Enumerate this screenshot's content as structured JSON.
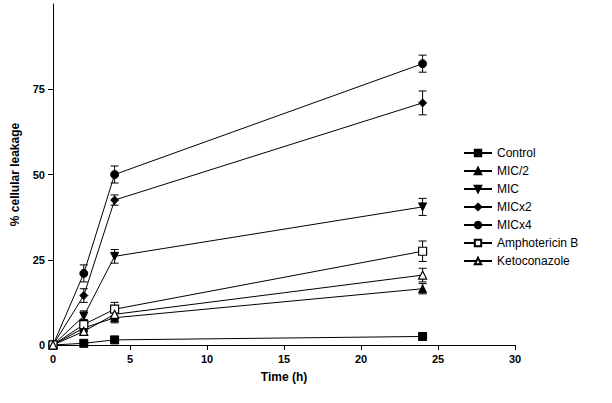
{
  "chart_data": {
    "type": "line",
    "x_label": "Time (h)",
    "y_label": "% cellular leakage",
    "xlim": [
      0,
      30
    ],
    "xticks": [
      0,
      5,
      10,
      15,
      20,
      25,
      30
    ],
    "ylim": [
      0,
      100
    ],
    "yticks": [
      0,
      25,
      50,
      75
    ],
    "grid": false,
    "legend": "right",
    "series": [
      {
        "name": "Control",
        "color": "#000000",
        "marker": "square",
        "x": [
          0,
          2,
          4,
          24
        ],
        "values": [
          0,
          0.5,
          1.5,
          2.5
        ],
        "errors": [
          0,
          0.3,
          0.4,
          0.5
        ]
      },
      {
        "name": "MIC/2",
        "color": "#000000",
        "marker": "triangle",
        "x": [
          0,
          2,
          4,
          24
        ],
        "values": [
          0,
          5,
          8,
          16.5
        ],
        "errors": [
          0,
          1,
          1.5,
          1.5
        ]
      },
      {
        "name": "MIC",
        "color": "#000000",
        "marker": "triangle-down",
        "x": [
          0,
          2,
          4,
          24
        ],
        "values": [
          0,
          8.5,
          26,
          40.5
        ],
        "errors": [
          0,
          1.5,
          2,
          2.5
        ]
      },
      {
        "name": "MICx2",
        "color": "#000000",
        "marker": "diamond",
        "x": [
          0,
          2,
          4,
          24
        ],
        "values": [
          0,
          14.5,
          42.5,
          71
        ],
        "errors": [
          0,
          2,
          1.5,
          3.5
        ]
      },
      {
        "name": "MICx4",
        "color": "#000000",
        "marker": "circle",
        "x": [
          0,
          2,
          4,
          24
        ],
        "values": [
          0,
          21,
          50,
          82.5
        ],
        "errors": [
          0,
          2.5,
          2.5,
          2.5
        ]
      },
      {
        "name": "Amphotericin B",
        "color": "#000000",
        "marker": "square-open",
        "x": [
          0,
          2,
          4,
          24
        ],
        "values": [
          0,
          6,
          10.5,
          27.5
        ],
        "errors": [
          0,
          1.5,
          2,
          3
        ]
      },
      {
        "name": "Ketoconazole",
        "color": "#000000",
        "marker": "triangle-open",
        "x": [
          0,
          2,
          4,
          24
        ],
        "values": [
          0,
          4,
          9,
          20.5
        ],
        "errors": [
          0,
          1,
          1.5,
          2
        ]
      }
    ]
  }
}
